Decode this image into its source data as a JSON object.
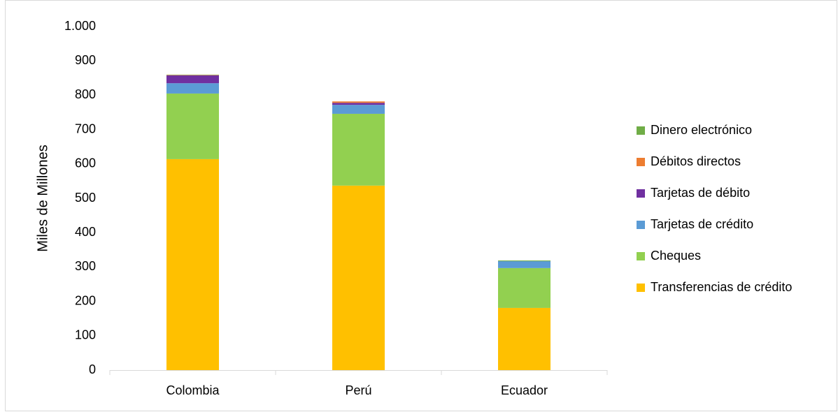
{
  "chart_data": {
    "type": "stacked-bar",
    "y_label": "Miles de Millones",
    "categories": [
      "Colombia",
      "Perú",
      "Ecuador"
    ],
    "series": [
      {
        "name": "Transferencias de crédito",
        "color": "#FFC000",
        "values": [
          614,
          537,
          181
        ]
      },
      {
        "name": "Cheques",
        "color": "#92D050",
        "values": [
          191,
          209,
          116
        ]
      },
      {
        "name": "Tarjetas de crédito",
        "color": "#5B9BD5",
        "values": [
          30,
          26,
          20
        ]
      },
      {
        "name": "Tarjetas  de débito",
        "color": "#7030A0",
        "values": [
          23,
          6,
          0
        ]
      },
      {
        "name": "Débitos directos",
        "color": "#ED7D31",
        "values": [
          1,
          4,
          0
        ]
      },
      {
        "name": "Dinero electrónico",
        "color": "#70AD47",
        "values": [
          1,
          0,
          2
        ]
      }
    ],
    "ylim": [
      0,
      1000
    ],
    "yticks": [
      0,
      100,
      200,
      300,
      400,
      500,
      600,
      700,
      800,
      900,
      {
        "value": 1000,
        "label": "1.000"
      }
    ],
    "grid": false,
    "legend": "right"
  }
}
